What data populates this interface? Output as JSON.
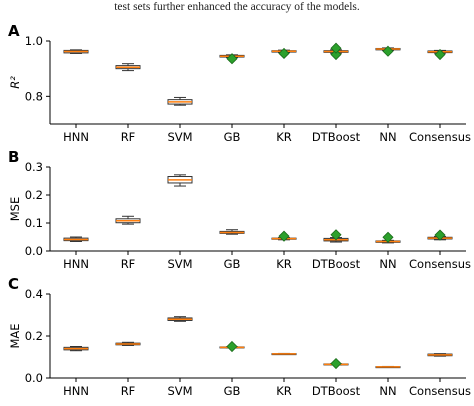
{
  "caption": "test sets further enhanced the accuracy of the models.",
  "chart_data": [
    {
      "type": "box",
      "panel_label": "A",
      "ylabel": "R²",
      "ylim": [
        0.7,
        1.0
      ],
      "yticks": [
        "0.8",
        "1.0"
      ],
      "categories": [
        "HNN",
        "RF",
        "SVM",
        "GB",
        "KR",
        "DTBoost",
        "NN",
        "Consensus"
      ],
      "boxes": [
        {
          "whislo": 0.955,
          "q1": 0.957,
          "med": 0.962,
          "q3": 0.966,
          "whishi": 0.968
        },
        {
          "whislo": 0.893,
          "q1": 0.9,
          "med": 0.905,
          "q3": 0.911,
          "whishi": 0.918
        },
        {
          "whislo": 0.768,
          "q1": 0.772,
          "med": 0.78,
          "q3": 0.788,
          "whishi": 0.796
        },
        {
          "whislo": 0.94,
          "q1": 0.942,
          "med": 0.945,
          "q3": 0.948,
          "whishi": 0.95
        },
        {
          "whislo": 0.958,
          "q1": 0.96,
          "med": 0.963,
          "q3": 0.965,
          "whishi": 0.967
        },
        {
          "whislo": 0.956,
          "q1": 0.959,
          "med": 0.962,
          "q3": 0.965,
          "whishi": 0.968
        },
        {
          "whislo": 0.966,
          "q1": 0.968,
          "med": 0.971,
          "q3": 0.973,
          "whishi": 0.975
        },
        {
          "whislo": 0.956,
          "q1": 0.958,
          "med": 0.961,
          "q3": 0.964,
          "whishi": 0.966
        }
      ],
      "points": [
        {
          "category": "GB",
          "value": 0.936
        },
        {
          "category": "KR",
          "value": 0.955
        },
        {
          "category": "DTBoost",
          "value": 0.951
        },
        {
          "category": "DTBoost",
          "value": 0.974
        },
        {
          "category": "NN",
          "value": 0.963
        },
        {
          "category": "Consensus",
          "value": 0.951
        }
      ]
    },
    {
      "type": "box",
      "panel_label": "B",
      "ylabel": "MSE",
      "ylim": [
        0.0,
        0.3
      ],
      "yticks": [
        "0.0",
        "0.1",
        "0.2",
        "0.3"
      ],
      "categories": [
        "HNN",
        "RF",
        "SVM",
        "GB",
        "KR",
        "DTBoost",
        "NN",
        "Consensus"
      ],
      "boxes": [
        {
          "whislo": 0.034,
          "q1": 0.037,
          "med": 0.041,
          "q3": 0.046,
          "whishi": 0.05
        },
        {
          "whislo": 0.096,
          "q1": 0.101,
          "med": 0.108,
          "q3": 0.115,
          "whishi": 0.124
        },
        {
          "whislo": 0.232,
          "q1": 0.243,
          "med": 0.254,
          "q3": 0.266,
          "whishi": 0.272
        },
        {
          "whislo": 0.06,
          "q1": 0.063,
          "med": 0.066,
          "q3": 0.07,
          "whishi": 0.076
        },
        {
          "whislo": 0.04,
          "q1": 0.042,
          "med": 0.044,
          "q3": 0.046,
          "whishi": 0.048
        },
        {
          "whislo": 0.032,
          "q1": 0.036,
          "med": 0.04,
          "q3": 0.045,
          "whishi": 0.048
        },
        {
          "whislo": 0.029,
          "q1": 0.031,
          "med": 0.034,
          "q3": 0.036,
          "whishi": 0.038
        },
        {
          "whislo": 0.04,
          "q1": 0.043,
          "med": 0.046,
          "q3": 0.049,
          "whishi": 0.052
        }
      ],
      "points": [
        {
          "category": "KR",
          "value": 0.053
        },
        {
          "category": "DTBoost",
          "value": 0.058
        },
        {
          "category": "NN",
          "value": 0.049
        },
        {
          "category": "Consensus",
          "value": 0.057
        }
      ]
    },
    {
      "type": "box",
      "panel_label": "C",
      "ylabel": "MAE",
      "ylim": [
        0.0,
        0.4
      ],
      "yticks": [
        "0.0",
        "0.2",
        "0.4"
      ],
      "categories": [
        "HNN",
        "RF",
        "SVM",
        "GB",
        "KR",
        "DTBoost",
        "NN",
        "Consensus"
      ],
      "boxes": [
        {
          "whislo": 0.13,
          "q1": 0.134,
          "med": 0.14,
          "q3": 0.146,
          "whishi": 0.15
        },
        {
          "whislo": 0.155,
          "q1": 0.158,
          "med": 0.162,
          "q3": 0.166,
          "whishi": 0.17
        },
        {
          "whislo": 0.27,
          "q1": 0.274,
          "med": 0.28,
          "q3": 0.286,
          "whishi": 0.292
        },
        {
          "whislo": 0.143,
          "q1": 0.144,
          "med": 0.146,
          "q3": 0.148,
          "whishi": 0.149
        },
        {
          "whislo": 0.113,
          "q1": 0.114,
          "med": 0.115,
          "q3": 0.116,
          "whishi": 0.117
        },
        {
          "whislo": 0.062,
          "q1": 0.063,
          "med": 0.065,
          "q3": 0.067,
          "whishi": 0.068
        },
        {
          "whislo": 0.051,
          "q1": 0.052,
          "med": 0.053,
          "q3": 0.054,
          "whishi": 0.055
        },
        {
          "whislo": 0.104,
          "q1": 0.106,
          "med": 0.11,
          "q3": 0.114,
          "whishi": 0.116
        }
      ],
      "points": [
        {
          "category": "GB",
          "value": 0.15
        },
        {
          "category": "DTBoost",
          "value": 0.069
        }
      ]
    }
  ],
  "colors": {
    "box_edge": "#333333",
    "median": "#ff7f0e",
    "marker_fill": "#2ca02c",
    "marker_edge": "#1a6b1a",
    "axis": "#000000"
  }
}
